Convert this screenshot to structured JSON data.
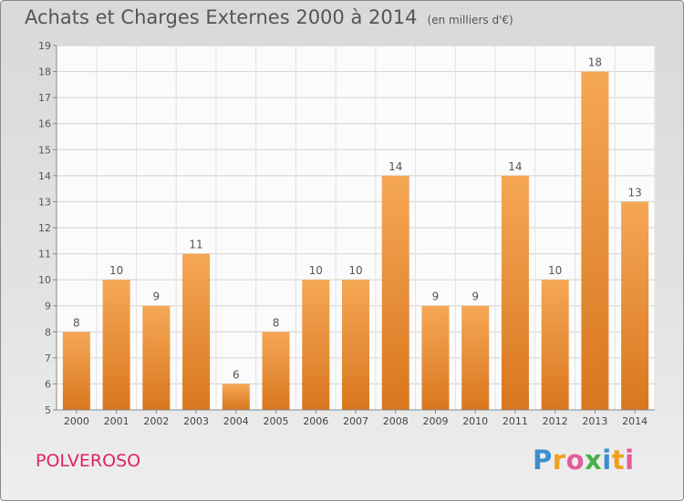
{
  "header": {
    "title": "Achats et Charges Externes 2000 à 2014",
    "unit": "(en milliers d'€)"
  },
  "footer": {
    "commune": "POLVEROSO",
    "logo_text": "Proxiti"
  },
  "colors": {
    "bar_light": "#f5a755",
    "bar_dark": "#d9771f",
    "commune": "#e0245e"
  },
  "chart_data": {
    "type": "bar",
    "title": "Achats et Charges Externes 2000 à 2014",
    "subtitle": "(en milliers d'€)",
    "categories": [
      "2000",
      "2001",
      "2002",
      "2003",
      "2004",
      "2005",
      "2006",
      "2007",
      "2008",
      "2009",
      "2010",
      "2011",
      "2012",
      "2013",
      "2014"
    ],
    "values": [
      8,
      10,
      9,
      11,
      6,
      8,
      10,
      10,
      14,
      9,
      9,
      14,
      10,
      18,
      13
    ],
    "data_labels": [
      "8",
      "10",
      "9",
      "11",
      "6",
      "8",
      "10",
      "10",
      "14",
      "9",
      "9",
      "14",
      "10",
      "18",
      "13"
    ],
    "ylim": [
      5,
      19
    ],
    "yticks": [
      5,
      6,
      7,
      8,
      9,
      10,
      11,
      12,
      13,
      14,
      15,
      16,
      17,
      18,
      19
    ],
    "grid": true,
    "xlabel": "",
    "ylabel": ""
  }
}
